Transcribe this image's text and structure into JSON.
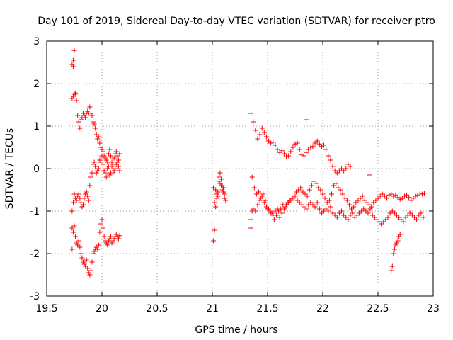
{
  "chart_data": {
    "type": "scatter",
    "title": "Day 101 of 2019, Sidereal Day-to-day VTEC variation (SDTVAR) for receiver ptro",
    "xlabel": "GPS time / hours",
    "ylabel": "SDTVAR / TECUs",
    "xlim": [
      19.5,
      23
    ],
    "ylim": [
      -3,
      3
    ],
    "xticks": [
      "19.5",
      "20",
      "20.5",
      "21",
      "21.5",
      "22",
      "22.5",
      "23"
    ],
    "yticks": [
      "3",
      "2",
      "1",
      "0",
      "-1",
      "-2",
      "-3"
    ],
    "grid": true,
    "marker": "+",
    "series": [
      {
        "name": "SDTVAR",
        "color": "#ff0000",
        "x": [
          19.73,
          19.74,
          19.75,
          19.76,
          19.77,
          19.78,
          19.79,
          19.8,
          19.81,
          19.82,
          19.83,
          19.84,
          19.85,
          19.86,
          19.87,
          19.88,
          19.89,
          19.9,
          19.91,
          19.92,
          19.93,
          19.94,
          19.95,
          19.96,
          19.97,
          19.98,
          19.99,
          20.0,
          20.01,
          20.02,
          20.03,
          20.04,
          20.05,
          20.06,
          20.07,
          20.08,
          20.09,
          20.1,
          20.11,
          20.12,
          20.13,
          20.14,
          20.15,
          20.16,
          19.73,
          19.74,
          19.75,
          19.76,
          19.77,
          19.78,
          19.79,
          19.8,
          19.81,
          19.82,
          19.83,
          19.84,
          19.85,
          19.86,
          19.87,
          19.88,
          19.89,
          19.9,
          19.91,
          19.92,
          19.93,
          19.94,
          19.95,
          19.96,
          19.97,
          19.98,
          19.99,
          20.0,
          20.01,
          20.02,
          20.03,
          20.04,
          20.05,
          20.06,
          20.07,
          20.08,
          20.09,
          20.1,
          20.11,
          20.12,
          20.13,
          20.14,
          20.15,
          20.16,
          19.73,
          19.74,
          19.75,
          19.76,
          19.77,
          19.78,
          19.79,
          19.8,
          19.81,
          19.82,
          19.83,
          19.84,
          19.85,
          19.86,
          19.87,
          19.88,
          19.89,
          19.9,
          19.91,
          19.92,
          19.93,
          19.94,
          19.95,
          19.96,
          19.97,
          19.98,
          19.99,
          20.0,
          20.01,
          20.02,
          20.03,
          20.04,
          20.05,
          20.06,
          20.07,
          20.08,
          20.09,
          20.1,
          20.11,
          20.12,
          20.13,
          20.14,
          20.15,
          20.16,
          19.73,
          19.74,
          19.75,
          19.74,
          19.73,
          21.01,
          21.02,
          21.03,
          21.04,
          21.05,
          21.06,
          21.07,
          21.08,
          21.09,
          21.1,
          21.11,
          21.12,
          21.03,
          21.05,
          21.07,
          21.09,
          21.11,
          21.02,
          21.06,
          21.1,
          21.01,
          21.04,
          21.08,
          21.35,
          21.37,
          21.39,
          21.41,
          21.43,
          21.45,
          21.47,
          21.49,
          21.51,
          21.53,
          21.55,
          21.57,
          21.59,
          21.61,
          21.63,
          21.65,
          21.67,
          21.69,
          21.71,
          21.73,
          21.75,
          21.77,
          21.79,
          21.81,
          21.83,
          21.85,
          21.87,
          21.89,
          21.91,
          21.93,
          21.95,
          21.97,
          21.99,
          22.01,
          22.03,
          22.05,
          22.07,
          22.09,
          22.11,
          22.13,
          22.15,
          22.17,
          22.19,
          22.21,
          22.23,
          22.25,
          21.35,
          21.37,
          21.39,
          21.41,
          21.43,
          21.45,
          21.47,
          21.49,
          21.51,
          21.53,
          21.55,
          21.57,
          21.59,
          21.61,
          21.63,
          21.65,
          21.67,
          21.69,
          21.71,
          21.73,
          21.75,
          21.77,
          21.79,
          21.81,
          21.83,
          21.85,
          21.87,
          21.89,
          21.91,
          21.93,
          21.95,
          21.97,
          21.99,
          22.01,
          22.03,
          22.05,
          22.07,
          22.09,
          22.11,
          22.13,
          22.15,
          22.17,
          22.19,
          22.21,
          22.23,
          22.25,
          22.27,
          22.29,
          22.31,
          22.33,
          22.35,
          22.37,
          22.39,
          22.41,
          22.43,
          22.45,
          22.47,
          22.49,
          22.51,
          22.53,
          22.55,
          22.57,
          22.59,
          22.61,
          22.63,
          22.65,
          22.67,
          22.69,
          22.71,
          22.73,
          22.75,
          22.77,
          22.79,
          22.81,
          22.83,
          22.85,
          22.87,
          22.89,
          22.91,
          21.36,
          21.38,
          21.4,
          21.42,
          21.44,
          21.46,
          21.48,
          21.5,
          21.52,
          21.54,
          21.56,
          21.58,
          21.6,
          21.62,
          21.64,
          21.66,
          21.68,
          21.7,
          21.72,
          21.74,
          21.76,
          21.78,
          21.8,
          21.82,
          21.84,
          21.86,
          21.88,
          21.9,
          21.92,
          21.94,
          21.96,
          21.98,
          22.0,
          22.02,
          22.04,
          22.06,
          22.08,
          22.1,
          22.12,
          22.14,
          22.16,
          22.18,
          22.2,
          22.22,
          22.24,
          22.26,
          22.28,
          22.3,
          22.32,
          22.34,
          22.36,
          22.38,
          22.4,
          22.42,
          22.44,
          22.46,
          22.48,
          22.5,
          22.52,
          22.54,
          22.56,
          22.58,
          22.6,
          22.62,
          22.64,
          22.66,
          22.68,
          22.7,
          22.72,
          22.74,
          22.76,
          22.78,
          22.8,
          22.82,
          22.84,
          22.86,
          22.88,
          22.9,
          22.92,
          22.62,
          22.63,
          22.64,
          22.65,
          22.66,
          22.67,
          22.68,
          22.69,
          22.7,
          21.85,
          22.42,
          21.35,
          21.36
        ],
        "y": [
          1.65,
          1.7,
          1.75,
          1.78,
          1.6,
          1.25,
          1.1,
          0.95,
          1.15,
          1.2,
          1.3,
          1.25,
          1.2,
          1.3,
          1.35,
          1.3,
          1.45,
          1.3,
          1.25,
          1.1,
          1.05,
          0.95,
          0.8,
          0.7,
          0.75,
          0.6,
          0.5,
          0.45,
          0.4,
          0.3,
          0.25,
          0.2,
          0.15,
          0.35,
          0.45,
          0.3,
          0.15,
          0.1,
          0.25,
          0.35,
          0.4,
          0.3,
          0.2,
          0.35,
          -1.4,
          -1.5,
          -1.35,
          -1.6,
          -1.75,
          -1.8,
          -1.7,
          -1.85,
          -2.0,
          -2.1,
          -2.2,
          -2.25,
          -2.3,
          -2.15,
          -2.35,
          -2.45,
          -2.5,
          -2.4,
          -2.2,
          -2.0,
          -1.95,
          -1.9,
          -1.85,
          -1.9,
          -1.8,
          -1.5,
          -1.3,
          -1.2,
          -1.4,
          -1.6,
          -1.7,
          -1.75,
          -1.8,
          -1.7,
          -1.65,
          -1.6,
          -1.75,
          -1.7,
          -1.65,
          -1.6,
          -1.55,
          -1.6,
          -1.65,
          -1.58,
          -1.0,
          -0.8,
          -0.6,
          -0.7,
          -0.75,
          -0.65,
          -0.6,
          -0.7,
          -0.8,
          -0.9,
          -0.85,
          -0.7,
          -0.6,
          -0.55,
          -0.65,
          -0.75,
          -0.4,
          -0.2,
          -0.1,
          0.1,
          0.15,
          0.05,
          -0.1,
          -0.05,
          0.0,
          0.2,
          0.15,
          0.3,
          0.1,
          -0.05,
          -0.1,
          -0.2,
          0.0,
          0.05,
          -0.15,
          -0.1,
          0.05,
          -0.1,
          -0.05,
          0.0,
          0.1,
          0.15,
          0.05,
          -0.05,
          2.45,
          2.55,
          2.78,
          2.4,
          -1.9,
          -1.7,
          -1.45,
          -0.9,
          -0.7,
          -0.55,
          -0.3,
          -0.1,
          -0.25,
          -0.4,
          -0.45,
          -0.6,
          -0.75,
          -0.5,
          -0.65,
          -0.35,
          -0.5,
          -0.7,
          -0.8,
          -0.2,
          -0.55,
          -0.45,
          -0.6,
          -0.4,
          1.3,
          1.1,
          0.9,
          0.7,
          0.8,
          0.95,
          0.85,
          0.75,
          0.65,
          0.6,
          0.62,
          0.55,
          0.45,
          0.38,
          0.42,
          0.35,
          0.28,
          0.3,
          0.4,
          0.5,
          0.58,
          0.6,
          0.45,
          0.32,
          0.3,
          0.38,
          0.45,
          0.5,
          0.52,
          0.6,
          0.65,
          0.58,
          0.52,
          0.55,
          0.45,
          0.3,
          0.2,
          0.05,
          -0.05,
          -0.1,
          -0.05,
          0.0,
          -0.05,
          0.0,
          0.1,
          0.05,
          -1.2,
          -0.95,
          -1.0,
          -0.85,
          -0.75,
          -0.65,
          -0.8,
          -0.9,
          -0.95,
          -1.05,
          -1.1,
          -1.0,
          -0.95,
          -1.15,
          -1.05,
          -0.95,
          -0.85,
          -0.8,
          -0.75,
          -0.7,
          -0.65,
          -0.75,
          -0.8,
          -0.85,
          -0.9,
          -0.95,
          -0.85,
          -0.8,
          -0.85,
          -0.9,
          -0.8,
          -0.95,
          -1.05,
          -1.0,
          -0.95,
          -1.0,
          -0.9,
          -1.05,
          -1.1,
          -1.15,
          -1.05,
          -1.0,
          -1.1,
          -1.15,
          -1.2,
          -1.1,
          -1.05,
          -1.15,
          -1.1,
          -1.05,
          -1.0,
          -0.95,
          -1.0,
          -1.05,
          -0.95,
          -1.1,
          -1.15,
          -1.2,
          -1.25,
          -1.3,
          -1.25,
          -1.2,
          -1.15,
          -1.05,
          -1.0,
          -1.05,
          -1.1,
          -1.15,
          -1.2,
          -1.25,
          -1.15,
          -1.1,
          -1.05,
          -1.1,
          -1.15,
          -1.2,
          -1.1,
          -1.05,
          -1.15,
          -0.2,
          -0.45,
          -0.6,
          -0.55,
          -0.7,
          -0.6,
          -0.75,
          -0.95,
          -1.0,
          -1.05,
          -1.2,
          -1.1,
          -1.0,
          -0.95,
          -0.85,
          -0.9,
          -0.8,
          -0.75,
          -0.7,
          -0.65,
          -0.55,
          -0.5,
          -0.45,
          -0.55,
          -0.6,
          -0.65,
          -0.5,
          -0.4,
          -0.3,
          -0.35,
          -0.45,
          -0.5,
          -0.6,
          -0.7,
          -0.8,
          -0.75,
          -0.6,
          -0.4,
          -0.35,
          -0.45,
          -0.5,
          -0.6,
          -0.7,
          -0.75,
          -0.85,
          -0.95,
          -0.9,
          -0.8,
          -0.75,
          -0.7,
          -0.65,
          -0.75,
          -0.8,
          -0.85,
          -0.9,
          -0.8,
          -0.75,
          -0.7,
          -0.65,
          -0.6,
          -0.65,
          -0.7,
          -0.62,
          -0.6,
          -0.65,
          -0.62,
          -0.68,
          -0.72,
          -0.7,
          -0.65,
          -0.62,
          -0.68,
          -0.75,
          -0.7,
          -0.65,
          -0.62,
          -0.58,
          -0.6,
          -0.58,
          -2.4,
          -2.3,
          -2.0,
          -1.9,
          -1.8,
          -1.75,
          -1.7,
          -1.6,
          -1.55,
          1.15,
          -0.15,
          -1.4,
          -1.0
        ]
      }
    ]
  }
}
